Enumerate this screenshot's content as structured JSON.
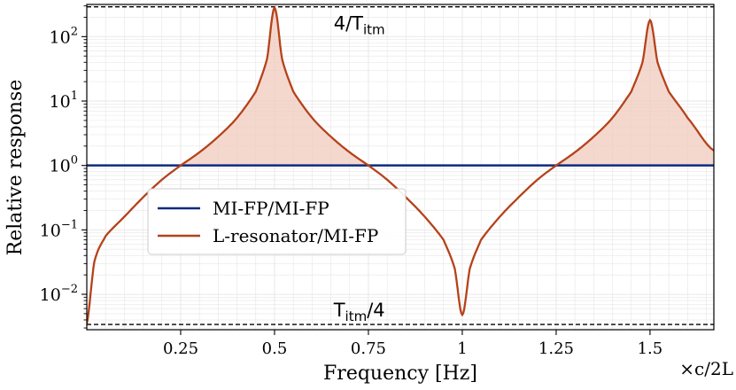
{
  "chart_data": {
    "type": "line",
    "xlabel": "Frequency [Hz]",
    "ylabel": "Relative response",
    "x_unit_note": "×c/2L",
    "xlim": [
      0.0,
      1.67
    ],
    "ylim_log10": [
      -2.55,
      2.5
    ],
    "y_scale": "log",
    "grid": true,
    "x_ticks": [
      {
        "value": 0.25,
        "label": "0.25"
      },
      {
        "value": 0.5,
        "label": "0.5"
      },
      {
        "value": 0.75,
        "label": "0.75"
      },
      {
        "value": 1.0,
        "label": "1"
      },
      {
        "value": 1.25,
        "label": "1.25"
      },
      {
        "value": 1.5,
        "label": "1.5"
      }
    ],
    "y_ticks": [
      {
        "exp": 2,
        "base": "10",
        "sup": "2"
      },
      {
        "exp": 1,
        "base": "10",
        "sup": "1"
      },
      {
        "exp": 0,
        "base": "10",
        "sup": "0"
      },
      {
        "exp": -1,
        "base": "10",
        "sup": "−1"
      },
      {
        "exp": -2,
        "base": "10",
        "sup": "−2"
      }
    ],
    "series": [
      {
        "name": "MI-FP/MI-FP",
        "color": "#0d2a80",
        "x": [
          0.0,
          1.67
        ],
        "y": [
          1.0,
          1.0
        ]
      },
      {
        "name": "L-resonator/MI-FP",
        "color": "#b5421a",
        "fill_color": "#f0cbbd",
        "x": [
          0.0,
          0.02,
          0.05,
          0.1,
          0.15,
          0.2,
          0.25,
          0.3,
          0.35,
          0.4,
          0.45,
          0.48,
          0.5,
          0.52,
          0.55,
          0.6,
          0.65,
          0.7,
          0.75,
          0.8,
          0.85,
          0.9,
          0.95,
          0.98,
          1.0,
          1.02,
          1.05,
          1.1,
          1.15,
          1.2,
          1.25,
          1.3,
          1.35,
          1.4,
          1.45,
          1.48,
          1.5,
          1.52,
          1.55,
          1.6,
          1.67
        ],
        "y": [
          0.0035,
          0.032,
          0.08,
          0.16,
          0.32,
          0.6,
          1.0,
          1.6,
          2.8,
          5.5,
          14,
          45,
          280,
          45,
          14,
          5.5,
          2.8,
          1.6,
          1.0,
          0.6,
          0.32,
          0.16,
          0.07,
          0.025,
          0.0048,
          0.025,
          0.07,
          0.16,
          0.32,
          0.6,
          1.0,
          1.6,
          2.8,
          5.5,
          14,
          40,
          180,
          40,
          14,
          5.5,
          1.7
        ]
      }
    ],
    "reference_lines": [
      {
        "name": "upper-bound",
        "y": 290,
        "label_main": "4/T",
        "label_sub": "itm",
        "label_x": 0.74
      },
      {
        "name": "lower-bound",
        "y": 0.0034,
        "label_main": "T",
        "label_sub": "itm",
        "label_tail": "/4",
        "label_x": 0.74
      }
    ],
    "legend_position": "lower-left"
  }
}
